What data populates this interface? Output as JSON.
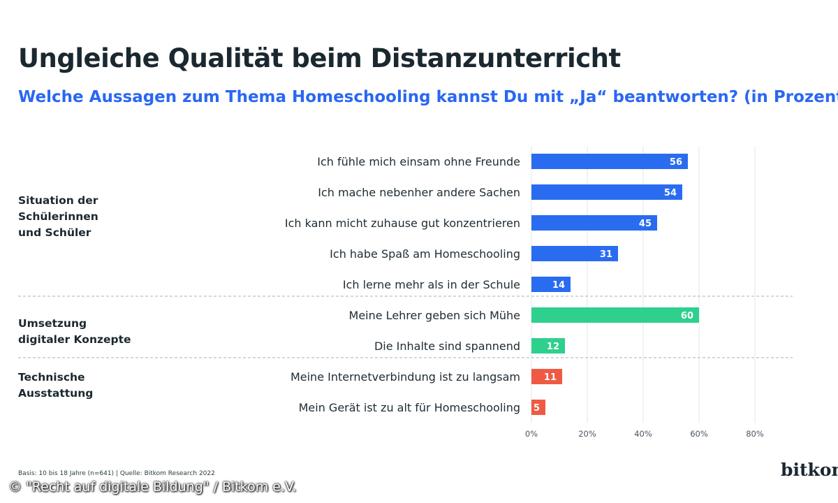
{
  "title": "Ungleiche Qualität beim Distanzunterricht",
  "subtitle": "Welche Aussagen zum Thema Homeschooling kannst Du mit „Ja“ beantworten? (in Prozent)",
  "groups": [
    {
      "label": "Situation der\nSchülerinnen\nund Schüler",
      "color": "#2a6cf0"
    },
    {
      "label": "Umsetzung\ndigitaler Konzepte",
      "color": "#2fcf8e"
    },
    {
      "label": "Technische\nAusstattung",
      "color": "#ef5a44"
    }
  ],
  "chart_data": {
    "type": "bar",
    "orientation": "horizontal",
    "categories": [
      "Ich fühle mich einsam ohne Freunde",
      "Ich mache nebenher andere Sachen",
      "Ich kann micht zuhause gut konzentrieren",
      "Ich habe Spaß am Homeschooling",
      "Ich lerne mehr als in der Schule",
      "Meine Lehrer geben sich Mühe",
      "Die Inhalte sind spannend",
      "Meine Internetverbindung ist zu langsam",
      "Mein Gerät ist zu alt für Homeschooling"
    ],
    "values": [
      56,
      54,
      45,
      31,
      14,
      60,
      12,
      11,
      5
    ],
    "group_index": [
      0,
      0,
      0,
      0,
      0,
      1,
      1,
      2,
      2
    ],
    "xlim": [
      0,
      80
    ],
    "xticks": [
      "0%",
      "20%",
      "40%",
      "60%",
      "80%"
    ],
    "grid": true,
    "value_labels": true
  },
  "footer": {
    "note": "Basis: 10 bis 18 Jahre (n=641) | Quelle: Bitkom Research 2022",
    "brand": "bitkom",
    "copyright": "© \"Recht auf digitale Bildung\" / Bitkom e.V."
  }
}
